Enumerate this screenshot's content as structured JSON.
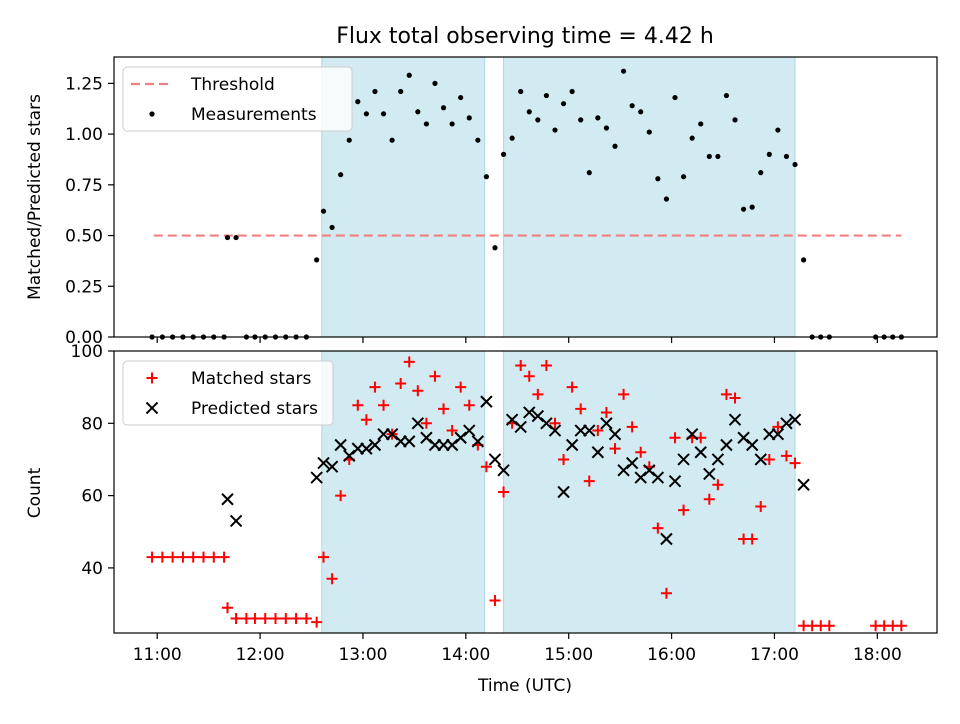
{
  "title": "Flux total observing time = 4.42 h",
  "colors": {
    "threshold": "#f08080",
    "measurements": "#000000",
    "matched": "#ff0000",
    "predicted": "#000000",
    "shade": "#add8e6"
  },
  "chart_data": [
    {
      "type": "scatter",
      "title": "Flux total observing time = 4.42 h",
      "xlabel": "",
      "ylabel": "Matched/Predicted stars",
      "xlim": [
        10.58,
        18.58
      ],
      "ylim": [
        0.0,
        1.38
      ],
      "yticks": [
        0.0,
        0.25,
        0.5,
        0.75,
        1.0,
        1.25
      ],
      "ytick_labels": [
        "0.00",
        "0.25",
        "0.50",
        "0.75",
        "1.00",
        "1.25"
      ],
      "legend": "upper-left",
      "shaded_intervals": [
        [
          "12:36",
          "14:11"
        ],
        [
          "14:22",
          "17:12"
        ]
      ],
      "threshold": {
        "name": "Threshold",
        "value": 0.5,
        "x_start": "10:58",
        "x_end": "18:14"
      },
      "series": [
        {
          "name": "Measurements",
          "points": [
            [
              "10:57",
              0.0
            ],
            [
              "11:03",
              0.0
            ],
            [
              "11:09",
              0.0
            ],
            [
              "11:15",
              0.0
            ],
            [
              "11:21",
              0.0
            ],
            [
              "11:27",
              0.0
            ],
            [
              "11:33",
              0.0
            ],
            [
              "11:39",
              0.0
            ],
            [
              "11:41",
              0.49
            ],
            [
              "11:46",
              0.49
            ],
            [
              "11:52",
              0.0
            ],
            [
              "11:57",
              0.0
            ],
            [
              "12:03",
              0.0
            ],
            [
              "12:09",
              0.0
            ],
            [
              "12:15",
              0.0
            ],
            [
              "12:21",
              0.0
            ],
            [
              "12:27",
              0.0
            ],
            [
              "12:33",
              0.38
            ],
            [
              "12:37",
              0.62
            ],
            [
              "12:42",
              0.54
            ],
            [
              "12:47",
              0.8
            ],
            [
              "12:52",
              0.97
            ],
            [
              "12:57",
              1.16
            ],
            [
              "13:02",
              1.1
            ],
            [
              "13:07",
              1.21
            ],
            [
              "13:12",
              1.1
            ],
            [
              "13:17",
              0.97
            ],
            [
              "13:22",
              1.21
            ],
            [
              "13:27",
              1.29
            ],
            [
              "13:32",
              1.11
            ],
            [
              "13:37",
              1.05
            ],
            [
              "13:42",
              1.25
            ],
            [
              "13:47",
              1.13
            ],
            [
              "13:52",
              1.05
            ],
            [
              "13:57",
              1.18
            ],
            [
              "14:02",
              1.08
            ],
            [
              "14:07",
              0.97
            ],
            [
              "14:12",
              0.79
            ],
            [
              "14:17",
              0.44
            ],
            [
              "14:22",
              0.9
            ],
            [
              "14:27",
              0.98
            ],
            [
              "14:32",
              1.21
            ],
            [
              "14:37",
              1.11
            ],
            [
              "14:42",
              1.07
            ],
            [
              "14:47",
              1.19
            ],
            [
              "14:52",
              1.02
            ],
            [
              "14:57",
              1.15
            ],
            [
              "15:02",
              1.21
            ],
            [
              "15:07",
              1.07
            ],
            [
              "15:12",
              0.81
            ],
            [
              "15:17",
              1.08
            ],
            [
              "15:22",
              1.03
            ],
            [
              "15:27",
              0.94
            ],
            [
              "15:32",
              1.31
            ],
            [
              "15:37",
              1.14
            ],
            [
              "15:42",
              1.11
            ],
            [
              "15:47",
              1.01
            ],
            [
              "15:52",
              0.78
            ],
            [
              "15:57",
              0.68
            ],
            [
              "16:02",
              1.18
            ],
            [
              "16:07",
              0.79
            ],
            [
              "16:12",
              0.98
            ],
            [
              "16:17",
              1.05
            ],
            [
              "16:22",
              0.89
            ],
            [
              "16:27",
              0.89
            ],
            [
              "16:32",
              1.19
            ],
            [
              "16:37",
              1.07
            ],
            [
              "16:42",
              0.63
            ],
            [
              "16:47",
              0.64
            ],
            [
              "16:52",
              0.81
            ],
            [
              "16:57",
              0.9
            ],
            [
              "17:02",
              1.02
            ],
            [
              "17:07",
              0.89
            ],
            [
              "17:12",
              0.85
            ],
            [
              "17:17",
              0.38
            ],
            [
              "17:22",
              0.0
            ],
            [
              "17:27",
              0.0
            ],
            [
              "17:32",
              0.0
            ],
            [
              "17:59",
              0.0
            ],
            [
              "18:04",
              0.0
            ],
            [
              "18:09",
              0.0
            ],
            [
              "18:14",
              0.0
            ]
          ]
        }
      ]
    },
    {
      "type": "scatter",
      "title": "",
      "xlabel": "Time (UTC)",
      "ylabel": "Count",
      "xlim": [
        10.58,
        18.58
      ],
      "ylim": [
        22,
        100
      ],
      "yticks": [
        40,
        60,
        80,
        100
      ],
      "ytick_labels": [
        "40",
        "60",
        "80",
        "100"
      ],
      "xtick_labels": [
        "11:00",
        "12:00",
        "13:00",
        "14:00",
        "15:00",
        "16:00",
        "17:00",
        "18:00"
      ],
      "legend": "upper-left",
      "shaded_intervals": [
        [
          "12:36",
          "14:11"
        ],
        [
          "14:22",
          "17:12"
        ]
      ],
      "series": [
        {
          "name": "Matched stars",
          "marker": "+",
          "points": [
            [
              "10:57",
              43
            ],
            [
              "11:03",
              43
            ],
            [
              "11:09",
              43
            ],
            [
              "11:15",
              43
            ],
            [
              "11:21",
              43
            ],
            [
              "11:27",
              43
            ],
            [
              "11:33",
              43
            ],
            [
              "11:39",
              43
            ],
            [
              "11:41",
              29
            ],
            [
              "11:46",
              26
            ],
            [
              "11:52",
              26
            ],
            [
              "11:57",
              26
            ],
            [
              "12:03",
              26
            ],
            [
              "12:09",
              26
            ],
            [
              "12:15",
              26
            ],
            [
              "12:21",
              26
            ],
            [
              "12:27",
              26
            ],
            [
              "12:33",
              25
            ],
            [
              "12:37",
              43
            ],
            [
              "12:42",
              37
            ],
            [
              "12:47",
              60
            ],
            [
              "12:52",
              70
            ],
            [
              "12:57",
              85
            ],
            [
              "13:02",
              81
            ],
            [
              "13:07",
              90
            ],
            [
              "13:12",
              85
            ],
            [
              "13:17",
              77
            ],
            [
              "13:22",
              91
            ],
            [
              "13:27",
              97
            ],
            [
              "13:32",
              89
            ],
            [
              "13:37",
              80
            ],
            [
              "13:42",
              93
            ],
            [
              "13:47",
              84
            ],
            [
              "13:52",
              78
            ],
            [
              "13:57",
              90
            ],
            [
              "14:02",
              85
            ],
            [
              "14:07",
              74
            ],
            [
              "14:12",
              68
            ],
            [
              "14:17",
              31
            ],
            [
              "14:22",
              61
            ],
            [
              "14:27",
              80
            ],
            [
              "14:32",
              96
            ],
            [
              "14:37",
              93
            ],
            [
              "14:42",
              88
            ],
            [
              "14:47",
              96
            ],
            [
              "14:52",
              80
            ],
            [
              "14:57",
              70
            ],
            [
              "15:02",
              90
            ],
            [
              "15:07",
              84
            ],
            [
              "15:12",
              64
            ],
            [
              "15:17",
              78
            ],
            [
              "15:22",
              83
            ],
            [
              "15:27",
              73
            ],
            [
              "15:32",
              88
            ],
            [
              "15:37",
              79
            ],
            [
              "15:42",
              72
            ],
            [
              "15:47",
              68
            ],
            [
              "15:52",
              51
            ],
            [
              "15:57",
              33
            ],
            [
              "16:02",
              76
            ],
            [
              "16:07",
              56
            ],
            [
              "16:12",
              76
            ],
            [
              "16:17",
              76
            ],
            [
              "16:22",
              59
            ],
            [
              "16:27",
              63
            ],
            [
              "16:32",
              88
            ],
            [
              "16:37",
              87
            ],
            [
              "16:42",
              48
            ],
            [
              "16:47",
              48
            ],
            [
              "16:52",
              57
            ],
            [
              "16:57",
              70
            ],
            [
              "17:02",
              79
            ],
            [
              "17:07",
              71
            ],
            [
              "17:12",
              69
            ],
            [
              "17:17",
              24
            ],
            [
              "17:22",
              24
            ],
            [
              "17:27",
              24
            ],
            [
              "17:32",
              24
            ],
            [
              "17:59",
              24
            ],
            [
              "18:04",
              24
            ],
            [
              "18:09",
              24
            ],
            [
              "18:14",
              24
            ]
          ]
        },
        {
          "name": "Predicted stars",
          "marker": "x",
          "points": [
            [
              "11:41",
              59
            ],
            [
              "11:46",
              53
            ],
            [
              "12:33",
              65
            ],
            [
              "12:37",
              69
            ],
            [
              "12:42",
              68
            ],
            [
              "12:47",
              74
            ],
            [
              "12:52",
              71
            ],
            [
              "12:57",
              73
            ],
            [
              "13:02",
              73
            ],
            [
              "13:07",
              74
            ],
            [
              "13:12",
              77
            ],
            [
              "13:17",
              77
            ],
            [
              "13:22",
              75
            ],
            [
              "13:27",
              75
            ],
            [
              "13:32",
              80
            ],
            [
              "13:37",
              76
            ],
            [
              "13:42",
              74
            ],
            [
              "13:47",
              74
            ],
            [
              "13:52",
              74
            ],
            [
              "13:57",
              76
            ],
            [
              "14:02",
              78
            ],
            [
              "14:07",
              75
            ],
            [
              "14:12",
              86
            ],
            [
              "14:17",
              70
            ],
            [
              "14:22",
              67
            ],
            [
              "14:27",
              81
            ],
            [
              "14:32",
              79
            ],
            [
              "14:37",
              83
            ],
            [
              "14:42",
              82
            ],
            [
              "14:47",
              80
            ],
            [
              "14:52",
              78
            ],
            [
              "14:57",
              61
            ],
            [
              "15:02",
              74
            ],
            [
              "15:07",
              78
            ],
            [
              "15:12",
              78
            ],
            [
              "15:17",
              72
            ],
            [
              "15:22",
              80
            ],
            [
              "15:27",
              77
            ],
            [
              "15:32",
              67
            ],
            [
              "15:37",
              69
            ],
            [
              "15:42",
              65
            ],
            [
              "15:47",
              67
            ],
            [
              "15:52",
              65
            ],
            [
              "15:57",
              48
            ],
            [
              "16:02",
              64
            ],
            [
              "16:07",
              70
            ],
            [
              "16:12",
              77
            ],
            [
              "16:17",
              72
            ],
            [
              "16:22",
              66
            ],
            [
              "16:27",
              70
            ],
            [
              "16:32",
              74
            ],
            [
              "16:37",
              81
            ],
            [
              "16:42",
              76
            ],
            [
              "16:47",
              74
            ],
            [
              "16:52",
              70
            ],
            [
              "16:57",
              77
            ],
            [
              "17:02",
              77
            ],
            [
              "17:07",
              80
            ],
            [
              "17:12",
              81
            ],
            [
              "17:17",
              63
            ]
          ]
        }
      ]
    }
  ]
}
